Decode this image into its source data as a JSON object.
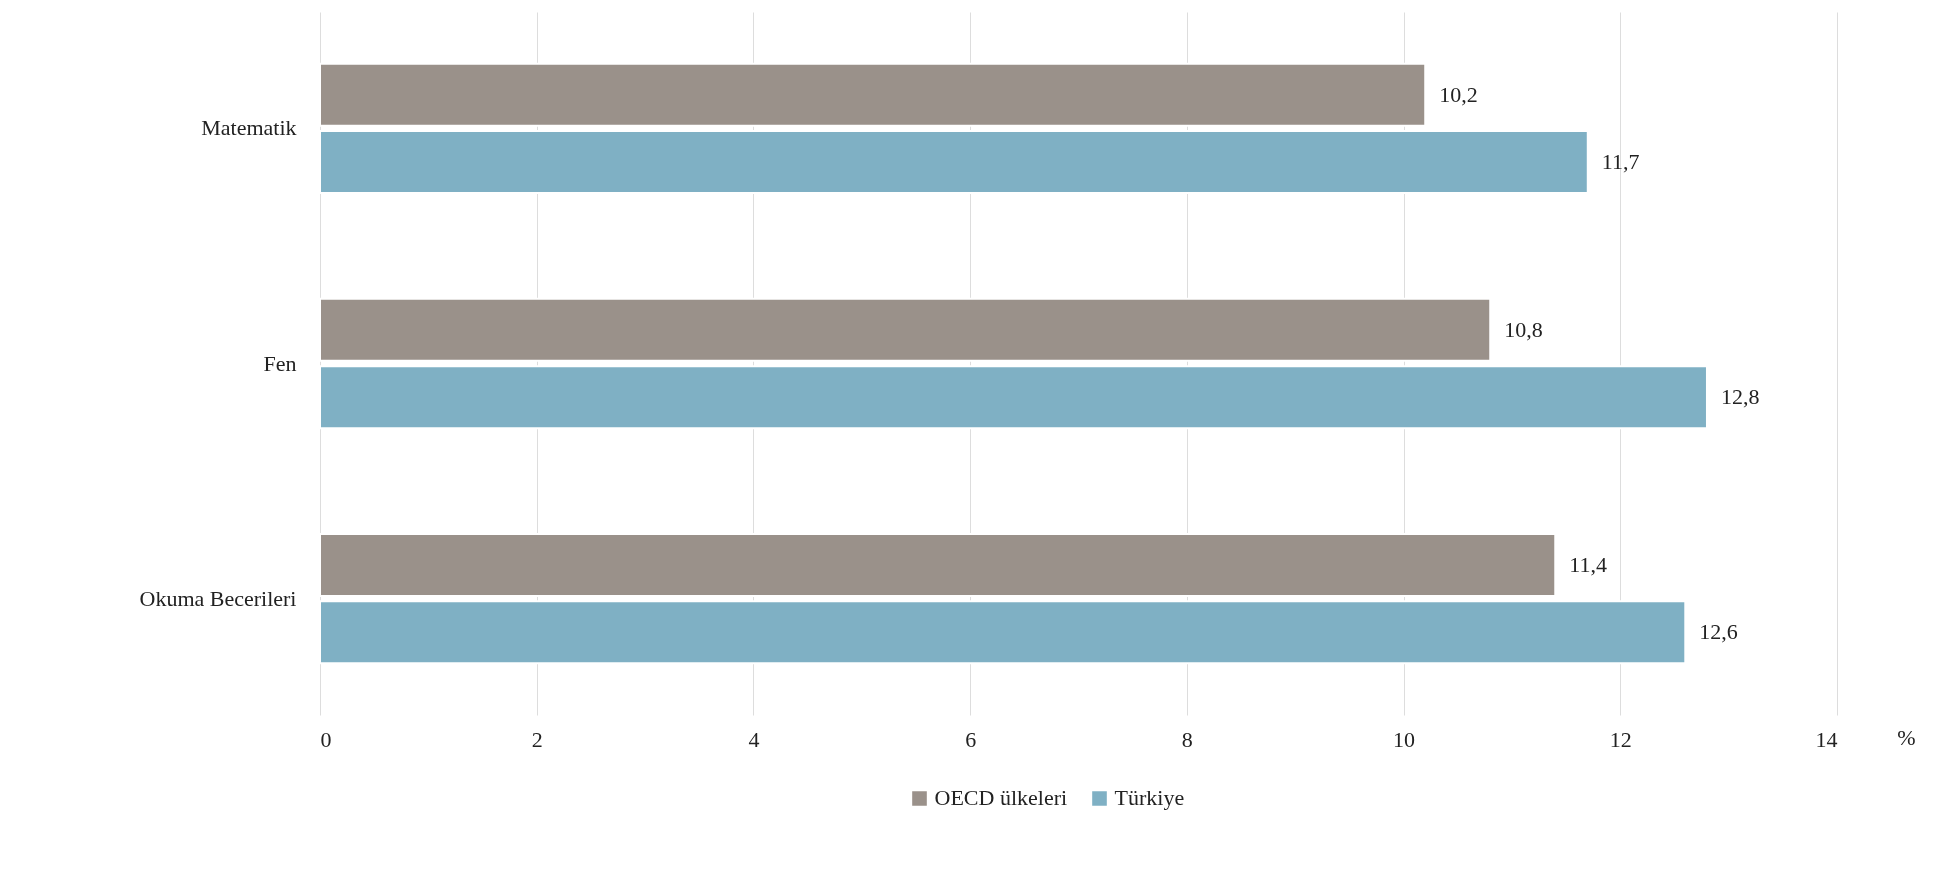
{
  "chart_data": {
    "type": "bar",
    "orientation": "horizontal",
    "xlabel": "%",
    "categories": [
      "Matematik",
      "Fen",
      "Okuma Becerileri"
    ],
    "series": [
      {
        "name": "OECD ülkeleri",
        "color": "#9a918a",
        "values": [
          10.2,
          10.8,
          11.4
        ],
        "value_labels": [
          "10,2",
          "10,8",
          "11,4"
        ]
      },
      {
        "name": "Türkiye",
        "color": "#7fb0c4",
        "values": [
          11.7,
          12.8,
          12.6
        ],
        "value_labels": [
          "11,7",
          "12,8",
          "12,6"
        ]
      }
    ],
    "xlim": [
      0,
      14
    ],
    "xticks": [
      0,
      2,
      4,
      6,
      8,
      10,
      12,
      14
    ],
    "grid": "x",
    "legend": "bottom"
  }
}
